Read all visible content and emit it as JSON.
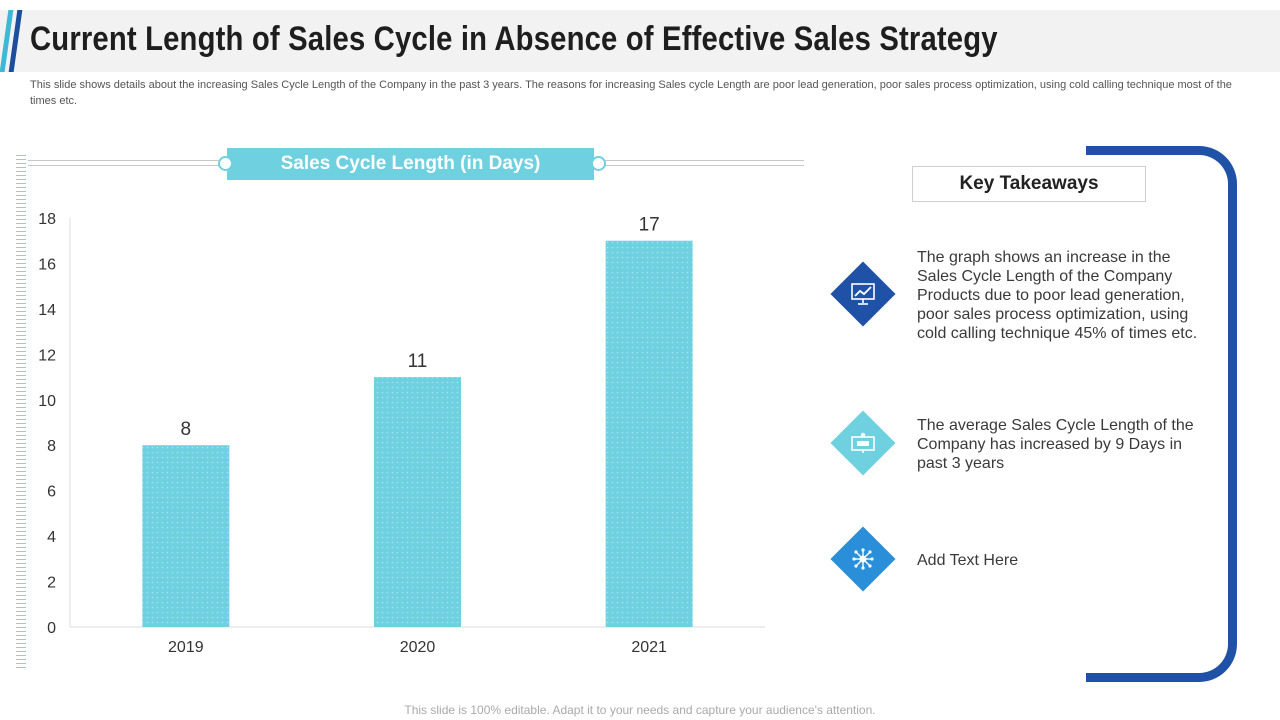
{
  "header": {
    "title": "Current Length of Sales Cycle in Absence of Effective Sales Strategy",
    "subtitle": "This slide shows details about the increasing Sales Cycle Length of the Company in the past 3 years. The reasons for increasing Sales cycle Length are poor lead generation, poor sales process optimization, using cold calling technique most of the times etc."
  },
  "chart_data": {
    "type": "bar",
    "title": "Sales Cycle Length (in Days)",
    "categories": [
      "2019",
      "2020",
      "2021"
    ],
    "values": [
      8,
      11,
      17
    ],
    "ylim": [
      0,
      18
    ],
    "yticks": [
      0,
      2,
      4,
      6,
      8,
      10,
      12,
      14,
      16,
      18
    ],
    "xlabel": "",
    "ylabel": "",
    "grid": false,
    "bar_color": "#6fd1e0"
  },
  "takeaways": {
    "title": "Key Takeaways",
    "items": [
      {
        "text": "The graph shows an increase in the Sales Cycle Length of the Company Products due to poor lead generation, poor sales process optimization, using cold calling technique  45% of times etc.",
        "icon": "trend-chart-icon",
        "color": "#1f52a6"
      },
      {
        "text": "The average Sales Cycle Length of the Company has increased by 9 Days in past 3 years",
        "icon": "presentation-icon",
        "color": "#6fd1e0"
      },
      {
        "text": "Add Text Here",
        "icon": "network-icon",
        "color": "#2a8fd8"
      }
    ]
  },
  "footer": {
    "text": "This slide is 100% editable. Adapt it to your needs and capture your audience's attention."
  }
}
